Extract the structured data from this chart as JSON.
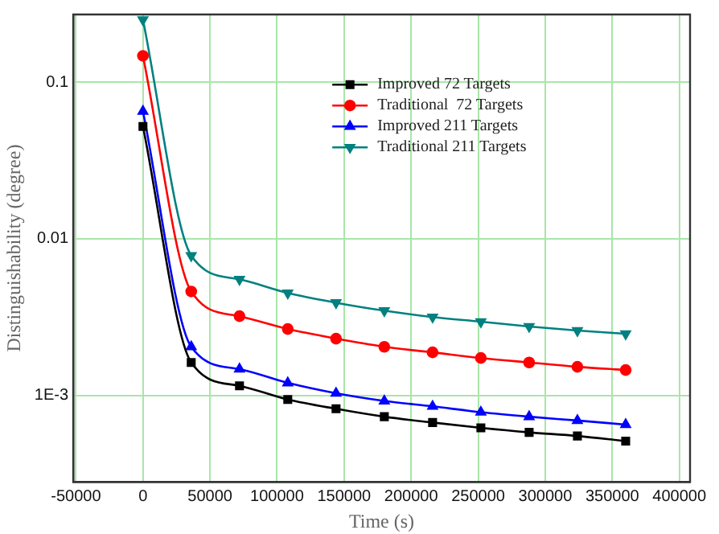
{
  "chart_data": {
    "type": "line",
    "xlabel": "Time (s)",
    "ylabel": "Distinguishability (degree)",
    "x": [
      0,
      36000,
      72000,
      108000,
      144000,
      180000,
      216000,
      252000,
      288000,
      324000,
      360000
    ],
    "series": [
      {
        "name": "Improved 72 Targets",
        "color": "#000000",
        "marker": "square",
        "values": [
          0.052,
          0.00162,
          0.00115,
          0.00094,
          0.00082,
          0.00073,
          0.00067,
          0.00062,
          0.00058,
          0.00055,
          0.00051
        ]
      },
      {
        "name": "Traditional  72 Targets",
        "color": "#ff0000",
        "marker": "circle",
        "values": [
          0.147,
          0.0046,
          0.0032,
          0.00265,
          0.0023,
          0.00204,
          0.00188,
          0.00173,
          0.00162,
          0.00152,
          0.00145
        ]
      },
      {
        "name": "Improved 211 Targets",
        "color": "#0000ff",
        "marker": "triangle",
        "values": [
          0.065,
          0.00204,
          0.00147,
          0.0012,
          0.00103,
          0.00092,
          0.00085,
          0.00078,
          0.00073,
          0.00069,
          0.00065
        ]
      },
      {
        "name": "Traditional 211 Targets",
        "color": "#008080",
        "marker": "triangle-down",
        "values": [
          0.25,
          0.0078,
          0.0055,
          0.0045,
          0.0039,
          0.00347,
          0.00316,
          0.00295,
          0.00275,
          0.00259,
          0.00247
        ]
      }
    ],
    "log": "y",
    "xlim": [
      -52000,
      408000
    ],
    "ylim": [
      0.00028,
      0.27
    ],
    "xticks": [
      -50000,
      0,
      50000,
      100000,
      150000,
      200000,
      250000,
      300000,
      350000,
      400000
    ],
    "yticks": [
      {
        "value": 0.001,
        "label": "1E-3"
      },
      0.01,
      0.1
    ],
    "grid": true,
    "legend": "top right"
  }
}
